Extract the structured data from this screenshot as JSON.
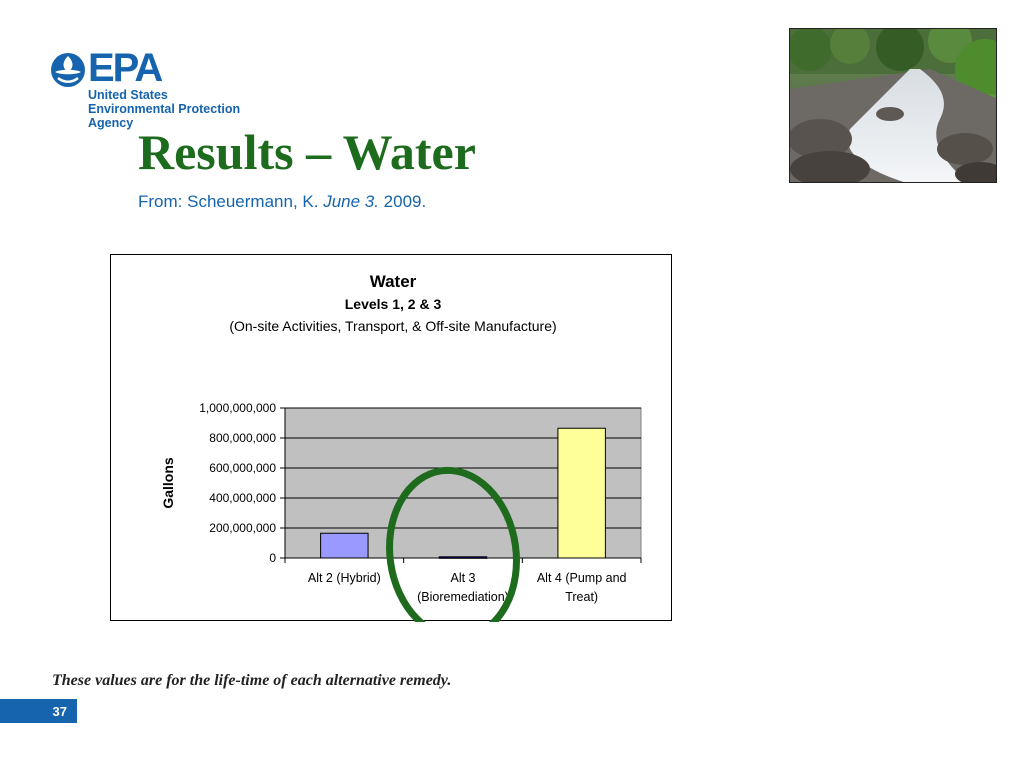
{
  "logo": {
    "wordmark": "EPA",
    "agency_lines": [
      "United States",
      "Environmental Protection",
      "Agency"
    ]
  },
  "slide": {
    "title": "Results – Water",
    "source_prefix": "From: Scheuermann, K. ",
    "source_italic": "June 3.",
    "source_suffix": " 2009.",
    "footnote": "These values are for the life-time of each alternative remedy.",
    "page_number": "37"
  },
  "colors": {
    "title": "#1d6b1d",
    "source": "#1664ad",
    "highlight_circle": "#1e6b1e"
  },
  "chart_data": {
    "type": "bar",
    "title": "Water",
    "subtitle_1": "Levels 1, 2 & 3",
    "subtitle_2": "(On-site Activities, Transport, & Off-site Manufacture)",
    "ylabel": "Gallons",
    "xlabel": "",
    "ylim": [
      0,
      1000000000
    ],
    "yticks": [
      0,
      200000000,
      400000000,
      600000000,
      800000000,
      1000000000
    ],
    "ytick_labels": [
      "0",
      "200,000,000",
      "400,000,000",
      "600,000,000",
      "800,000,000",
      "1,000,000,000"
    ],
    "categories": [
      [
        "Alt 2 (Hybrid)"
      ],
      [
        "Alt 3",
        "(Bioremediation)"
      ],
      [
        "Alt 4 (Pump and",
        "Treat)"
      ]
    ],
    "values": [
      165000000,
      8000000,
      865000000
    ],
    "bar_colors": [
      "#9999ff",
      "#000080",
      "#ffff99"
    ],
    "plot_background": "#c0c0c0",
    "grid": true,
    "legend": "none",
    "highlighted_category": "Alt 3"
  }
}
